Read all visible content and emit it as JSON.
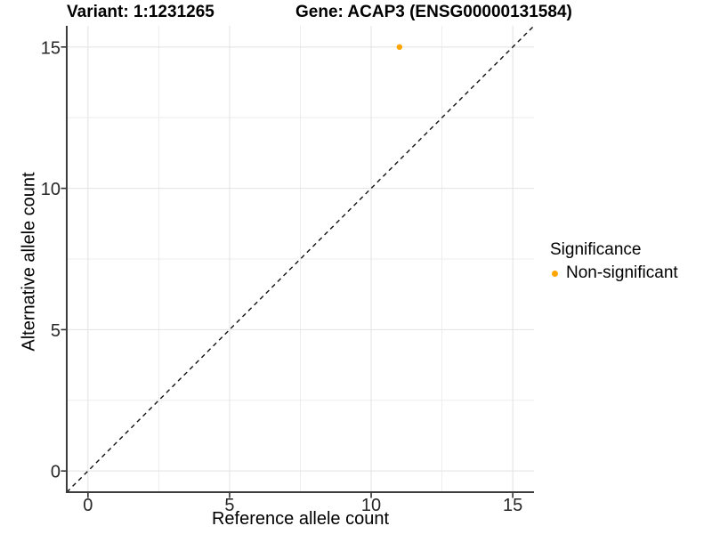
{
  "colors": {
    "point": "#FFA500",
    "grid_major": "#E2E2E2",
    "grid_minor": "#EDEDED",
    "axis_line": "#3C3C3C",
    "tick_mark": "#333333",
    "tick_label": "#262626",
    "dashed_line": "#111111",
    "background": "#FFFFFF"
  },
  "chart_data": {
    "type": "scatter",
    "title_left": "Variant: 1:1231265",
    "title_right": "Gene: ACAP3 (ENSG00000131584)",
    "xlabel": "Reference allele count",
    "ylabel": "Alternative allele count",
    "xlim": [
      -0.75,
      15.75
    ],
    "ylim": [
      -0.75,
      15.75
    ],
    "x_ticks": [
      0,
      5,
      10,
      15
    ],
    "y_ticks": [
      0,
      5,
      10,
      15
    ],
    "x_minor_ticks": [
      2.5,
      7.5,
      12.5
    ],
    "y_minor_ticks": [
      2.5,
      7.5,
      12.5
    ],
    "grid": "major+minor",
    "series": [
      {
        "name": "Non-significant",
        "color": "#FFA500",
        "points": [
          {
            "x": 11,
            "y": 15
          }
        ]
      }
    ],
    "reference_line": {
      "slope": 1,
      "intercept": 0,
      "style": "dashed",
      "color": "#111111"
    },
    "legend": {
      "title": "Significance",
      "position": "right",
      "items": [
        {
          "label": "Non-significant",
          "color": "#FFA500"
        }
      ]
    }
  }
}
